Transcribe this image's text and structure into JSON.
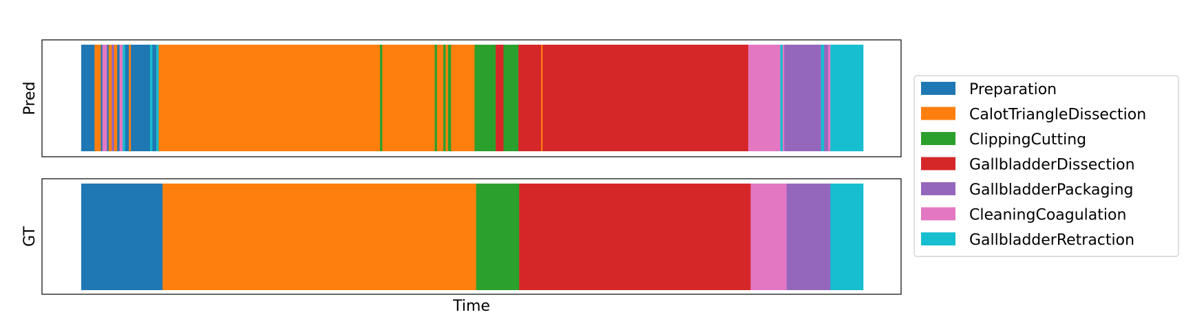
{
  "chart_data": {
    "type": "bar",
    "xlabel": "Time",
    "legend_position": "right",
    "classes": [
      {
        "name": "Preparation",
        "color": "#1f77b4"
      },
      {
        "name": "CalotTriangleDissection",
        "color": "#ff7f0e"
      },
      {
        "name": "ClippingCutting",
        "color": "#2ca02c"
      },
      {
        "name": "GallbladderDissection",
        "color": "#d62728"
      },
      {
        "name": "GallbladderPackaging",
        "color": "#9467bd"
      },
      {
        "name": "CleaningCoagulation",
        "color": "#e377c2"
      },
      {
        "name": "GallbladderRetraction",
        "color": "#17becf"
      }
    ],
    "rows": [
      {
        "label": "Pred",
        "segments": [
          {
            "start": 0,
            "end": 1.7,
            "class": 0
          },
          {
            "start": 1.7,
            "end": 2.5,
            "class": 1
          },
          {
            "start": 2.5,
            "end": 2.7,
            "class": 0
          },
          {
            "start": 2.7,
            "end": 3.3,
            "class": 5
          },
          {
            "start": 3.3,
            "end": 3.5,
            "class": 0
          },
          {
            "start": 3.5,
            "end": 3.9,
            "class": 1
          },
          {
            "start": 3.9,
            "end": 4.2,
            "class": 4
          },
          {
            "start": 4.2,
            "end": 4.6,
            "class": 1
          },
          {
            "start": 4.6,
            "end": 4.9,
            "class": 0
          },
          {
            "start": 4.9,
            "end": 5.3,
            "class": 5
          },
          {
            "start": 5.3,
            "end": 5.6,
            "class": 6
          },
          {
            "start": 5.6,
            "end": 6.1,
            "class": 0
          },
          {
            "start": 6.1,
            "end": 6.35,
            "class": 1
          },
          {
            "start": 6.35,
            "end": 8.8,
            "class": 0
          },
          {
            "start": 8.8,
            "end": 9.1,
            "class": 6
          },
          {
            "start": 9.1,
            "end": 9.6,
            "class": 0
          },
          {
            "start": 9.6,
            "end": 9.9,
            "class": 6
          },
          {
            "start": 9.9,
            "end": 38.2,
            "class": 1
          },
          {
            "start": 38.2,
            "end": 38.5,
            "class": 2
          },
          {
            "start": 38.5,
            "end": 45.2,
            "class": 1
          },
          {
            "start": 45.2,
            "end": 45.5,
            "class": 2
          },
          {
            "start": 45.5,
            "end": 46.3,
            "class": 1
          },
          {
            "start": 46.3,
            "end": 46.6,
            "class": 2
          },
          {
            "start": 46.6,
            "end": 46.9,
            "class": 1
          },
          {
            "start": 46.9,
            "end": 47.3,
            "class": 2
          },
          {
            "start": 47.3,
            "end": 50.3,
            "class": 1
          },
          {
            "start": 50.3,
            "end": 53.0,
            "class": 2
          },
          {
            "start": 53.0,
            "end": 54.0,
            "class": 3
          },
          {
            "start": 54.0,
            "end": 55.9,
            "class": 2
          },
          {
            "start": 55.9,
            "end": 58.8,
            "class": 3
          },
          {
            "start": 58.8,
            "end": 59.0,
            "class": 1
          },
          {
            "start": 59.0,
            "end": 85.3,
            "class": 3
          },
          {
            "start": 85.3,
            "end": 89.4,
            "class": 5
          },
          {
            "start": 89.4,
            "end": 89.7,
            "class": 6
          },
          {
            "start": 89.7,
            "end": 89.9,
            "class": 5
          },
          {
            "start": 89.9,
            "end": 94.6,
            "class": 4
          },
          {
            "start": 94.6,
            "end": 95.0,
            "class": 6
          },
          {
            "start": 95.0,
            "end": 95.5,
            "class": 4
          },
          {
            "start": 95.5,
            "end": 95.8,
            "class": 5
          },
          {
            "start": 95.8,
            "end": 100,
            "class": 6
          }
        ]
      },
      {
        "label": "GT",
        "segments": [
          {
            "start": 0,
            "end": 10.4,
            "class": 0
          },
          {
            "start": 10.4,
            "end": 50.5,
            "class": 1
          },
          {
            "start": 50.5,
            "end": 56.0,
            "class": 2
          },
          {
            "start": 56.0,
            "end": 85.6,
            "class": 3
          },
          {
            "start": 85.6,
            "end": 90.2,
            "class": 5
          },
          {
            "start": 90.2,
            "end": 95.8,
            "class": 4
          },
          {
            "start": 95.8,
            "end": 100,
            "class": 6
          }
        ]
      }
    ]
  }
}
